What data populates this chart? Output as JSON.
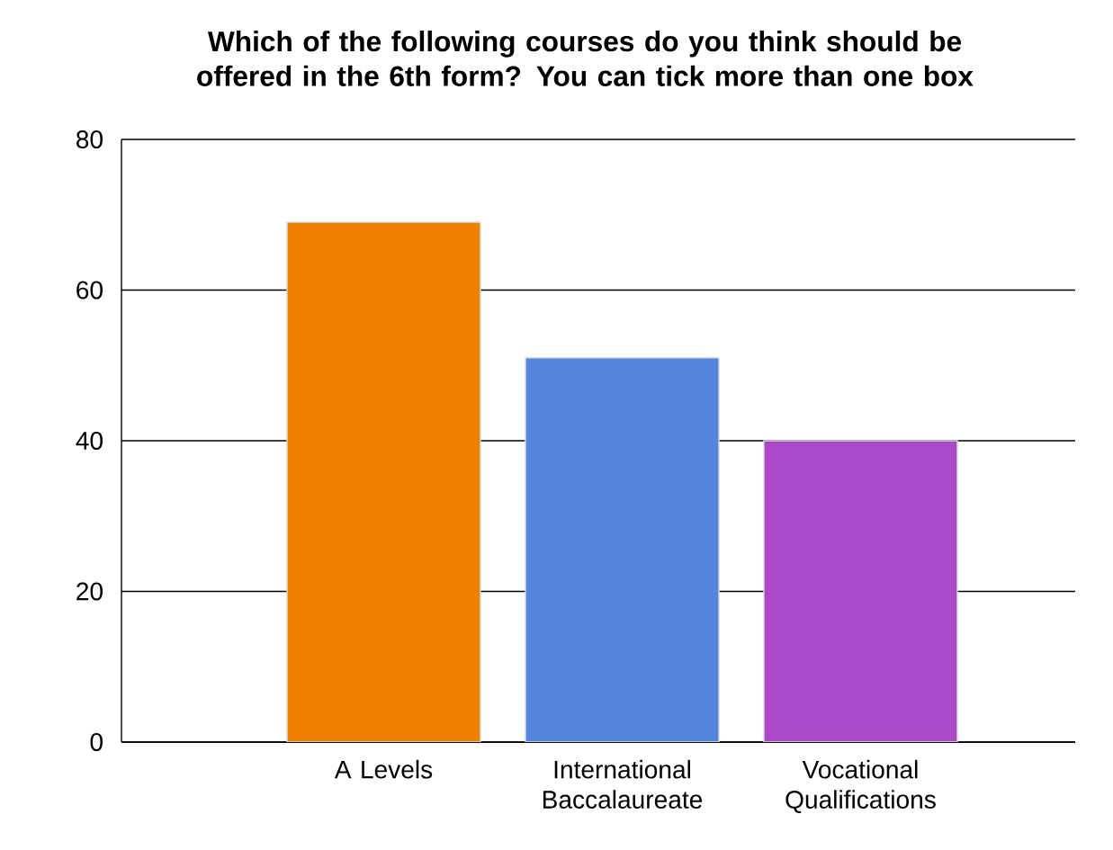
{
  "chart_data": {
    "type": "bar",
    "title": "Which of the following courses do you think should be offered in the 6th form? You can tick more than one box",
    "categories": [
      "A Levels",
      "International Baccalaureate",
      "Vocational Qualifications"
    ],
    "values": [
      69,
      51,
      40
    ],
    "colors": [
      "#f08000",
      "#5585dc",
      "#aa48c8"
    ],
    "ylim": [
      0,
      80
    ],
    "yticks": [
      0,
      20,
      40,
      60,
      80
    ],
    "grid": "y"
  }
}
